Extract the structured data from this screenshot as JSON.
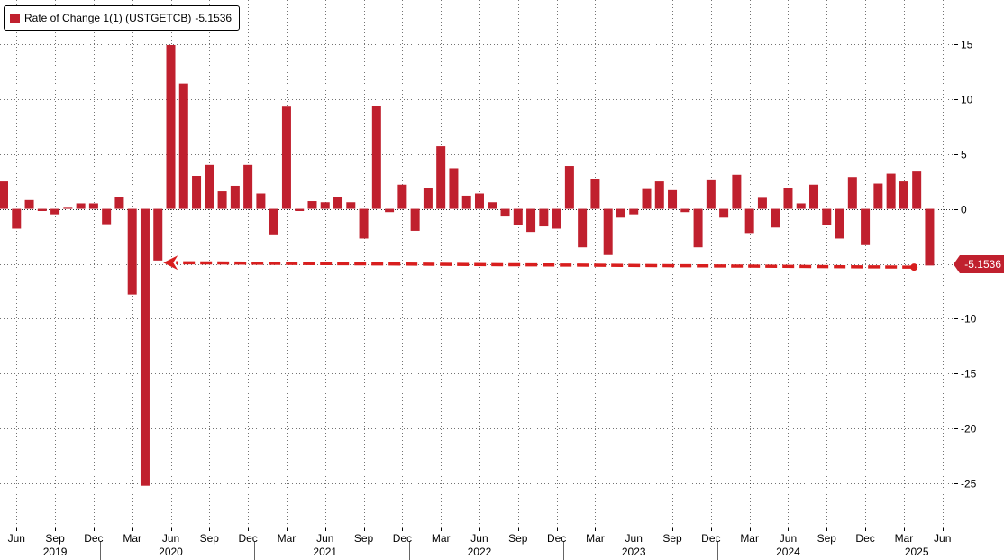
{
  "chart_data": {
    "type": "bar",
    "legend": {
      "label": "Rate of Change 1(1) (USTGETCB)",
      "last_value_text": "-5.1536"
    },
    "last_value_badge": "-5.1536",
    "colors": {
      "bar": "#c0202e",
      "arrow": "#d81e1e",
      "badge": "#c0202e"
    },
    "y_axis": {
      "position": "right",
      "ylim": [
        -29,
        19
      ],
      "ticks": [
        15,
        10,
        5,
        0,
        -5,
        -10,
        -15,
        -20,
        -25
      ],
      "tick_labels": [
        "15",
        "10",
        "5",
        "0",
        "-5",
        "-10",
        "-15",
        "-20",
        "-25"
      ]
    },
    "grid": true,
    "x_axis": {
      "month_ticks": [
        {
          "label": "Jun",
          "month": "2019-06"
        },
        {
          "label": "Sep",
          "month": "2019-09"
        },
        {
          "label": "Dec",
          "month": "2019-12"
        },
        {
          "label": "Mar",
          "month": "2020-03"
        },
        {
          "label": "Jun",
          "month": "2020-06"
        },
        {
          "label": "Sep",
          "month": "2020-09"
        },
        {
          "label": "Dec",
          "month": "2020-12"
        },
        {
          "label": "Mar",
          "month": "2021-03"
        },
        {
          "label": "Jun",
          "month": "2021-06"
        },
        {
          "label": "Sep",
          "month": "2021-09"
        },
        {
          "label": "Dec",
          "month": "2021-12"
        },
        {
          "label": "Mar",
          "month": "2022-03"
        },
        {
          "label": "Jun",
          "month": "2022-06"
        },
        {
          "label": "Sep",
          "month": "2022-09"
        },
        {
          "label": "Dec",
          "month": "2022-12"
        },
        {
          "label": "Mar",
          "month": "2023-03"
        },
        {
          "label": "Jun",
          "month": "2023-06"
        },
        {
          "label": "Sep",
          "month": "2023-09"
        },
        {
          "label": "Dec",
          "month": "2023-12"
        },
        {
          "label": "Mar",
          "month": "2024-03"
        },
        {
          "label": "Jun",
          "month": "2024-06"
        },
        {
          "label": "Sep",
          "month": "2024-09"
        },
        {
          "label": "Dec",
          "month": "2024-12"
        },
        {
          "label": "Mar",
          "month": "2025-03"
        },
        {
          "label": "Jun",
          "month": "2025-06"
        }
      ],
      "year_labels": [
        {
          "label": "2019",
          "month": "2019-09"
        },
        {
          "label": "2020",
          "month": "2020-06"
        },
        {
          "label": "2021",
          "month": "2021-06"
        },
        {
          "label": "2022",
          "month": "2022-06"
        },
        {
          "label": "2023",
          "month": "2023-06"
        },
        {
          "label": "2024",
          "month": "2024-06"
        },
        {
          "label": "2025",
          "month": "2025-04"
        }
      ],
      "year_boundaries": [
        "2020-01",
        "2021-01",
        "2022-01",
        "2023-01",
        "2024-01",
        "2025-01"
      ]
    },
    "series": [
      {
        "values": [
          {
            "month": "2019-05",
            "value": 2.5
          },
          {
            "month": "2019-06",
            "value": -1.8
          },
          {
            "month": "2019-07",
            "value": 0.8
          },
          {
            "month": "2019-08",
            "value": -0.2
          },
          {
            "month": "2019-09",
            "value": -0.5
          },
          {
            "month": "2019-10",
            "value": 0.1
          },
          {
            "month": "2019-11",
            "value": 0.5
          },
          {
            "month": "2019-12",
            "value": 0.5
          },
          {
            "month": "2020-01",
            "value": -1.4
          },
          {
            "month": "2020-02",
            "value": 1.1
          },
          {
            "month": "2020-03",
            "value": -7.8
          },
          {
            "month": "2020-04",
            "value": -25.2
          },
          {
            "month": "2020-05",
            "value": -4.7
          },
          {
            "month": "2020-06",
            "value": 14.9
          },
          {
            "month": "2020-07",
            "value": 11.4
          },
          {
            "month": "2020-08",
            "value": 3.0
          },
          {
            "month": "2020-09",
            "value": 4.0
          },
          {
            "month": "2020-10",
            "value": 1.6
          },
          {
            "month": "2020-11",
            "value": 2.1
          },
          {
            "month": "2020-12",
            "value": 4.0
          },
          {
            "month": "2021-01",
            "value": 1.4
          },
          {
            "month": "2021-02",
            "value": -2.4
          },
          {
            "month": "2021-03",
            "value": 9.3
          },
          {
            "month": "2021-04",
            "value": -0.2
          },
          {
            "month": "2021-05",
            "value": 0.7
          },
          {
            "month": "2021-06",
            "value": 0.6
          },
          {
            "month": "2021-07",
            "value": 1.1
          },
          {
            "month": "2021-08",
            "value": 0.6
          },
          {
            "month": "2021-09",
            "value": -2.7
          },
          {
            "month": "2021-10",
            "value": 9.4
          },
          {
            "month": "2021-11",
            "value": -0.3
          },
          {
            "month": "2021-12",
            "value": 2.2
          },
          {
            "month": "2022-01",
            "value": -2.0
          },
          {
            "month": "2022-02",
            "value": 1.9
          },
          {
            "month": "2022-03",
            "value": 5.7
          },
          {
            "month": "2022-04",
            "value": 3.7
          },
          {
            "month": "2022-05",
            "value": 1.2
          },
          {
            "month": "2022-06",
            "value": 1.4
          },
          {
            "month": "2022-07",
            "value": 0.6
          },
          {
            "month": "2022-08",
            "value": -0.7
          },
          {
            "month": "2022-09",
            "value": -1.5
          },
          {
            "month": "2022-10",
            "value": -2.1
          },
          {
            "month": "2022-11",
            "value": -1.6
          },
          {
            "month": "2022-12",
            "value": -1.8
          },
          {
            "month": "2023-01",
            "value": 3.9
          },
          {
            "month": "2023-02",
            "value": -3.5
          },
          {
            "month": "2023-03",
            "value": 2.7
          },
          {
            "month": "2023-04",
            "value": -4.2
          },
          {
            "month": "2023-05",
            "value": -0.8
          },
          {
            "month": "2023-06",
            "value": -0.5
          },
          {
            "month": "2023-07",
            "value": 1.8
          },
          {
            "month": "2023-08",
            "value": 2.5
          },
          {
            "month": "2023-09",
            "value": 1.7
          },
          {
            "month": "2023-10",
            "value": -0.3
          },
          {
            "month": "2023-11",
            "value": -3.5
          },
          {
            "month": "2023-12",
            "value": 2.6
          },
          {
            "month": "2024-01",
            "value": -0.8
          },
          {
            "month": "2024-02",
            "value": 3.1
          },
          {
            "month": "2024-03",
            "value": -2.2
          },
          {
            "month": "2024-04",
            "value": 1.0
          },
          {
            "month": "2024-05",
            "value": -1.7
          },
          {
            "month": "2024-06",
            "value": 1.9
          },
          {
            "month": "2024-07",
            "value": 0.5
          },
          {
            "month": "2024-08",
            "value": 2.2
          },
          {
            "month": "2024-09",
            "value": -1.5
          },
          {
            "month": "2024-10",
            "value": -2.7
          },
          {
            "month": "2024-11",
            "value": 2.9
          },
          {
            "month": "2024-12",
            "value": -3.3
          },
          {
            "month": "2025-01",
            "value": 2.3
          },
          {
            "month": "2025-02",
            "value": 3.2
          },
          {
            "month": "2025-03",
            "value": 2.5
          },
          {
            "month": "2025-04",
            "value": 3.4
          },
          {
            "month": "2025-05",
            "value": -5.1536
          }
        ]
      }
    ],
    "annotation": {
      "type": "dashed-arrow",
      "from": {
        "month": "2025-04",
        "value": -5.3
      },
      "to": {
        "month": "2020-05",
        "value": -4.9
      }
    }
  }
}
